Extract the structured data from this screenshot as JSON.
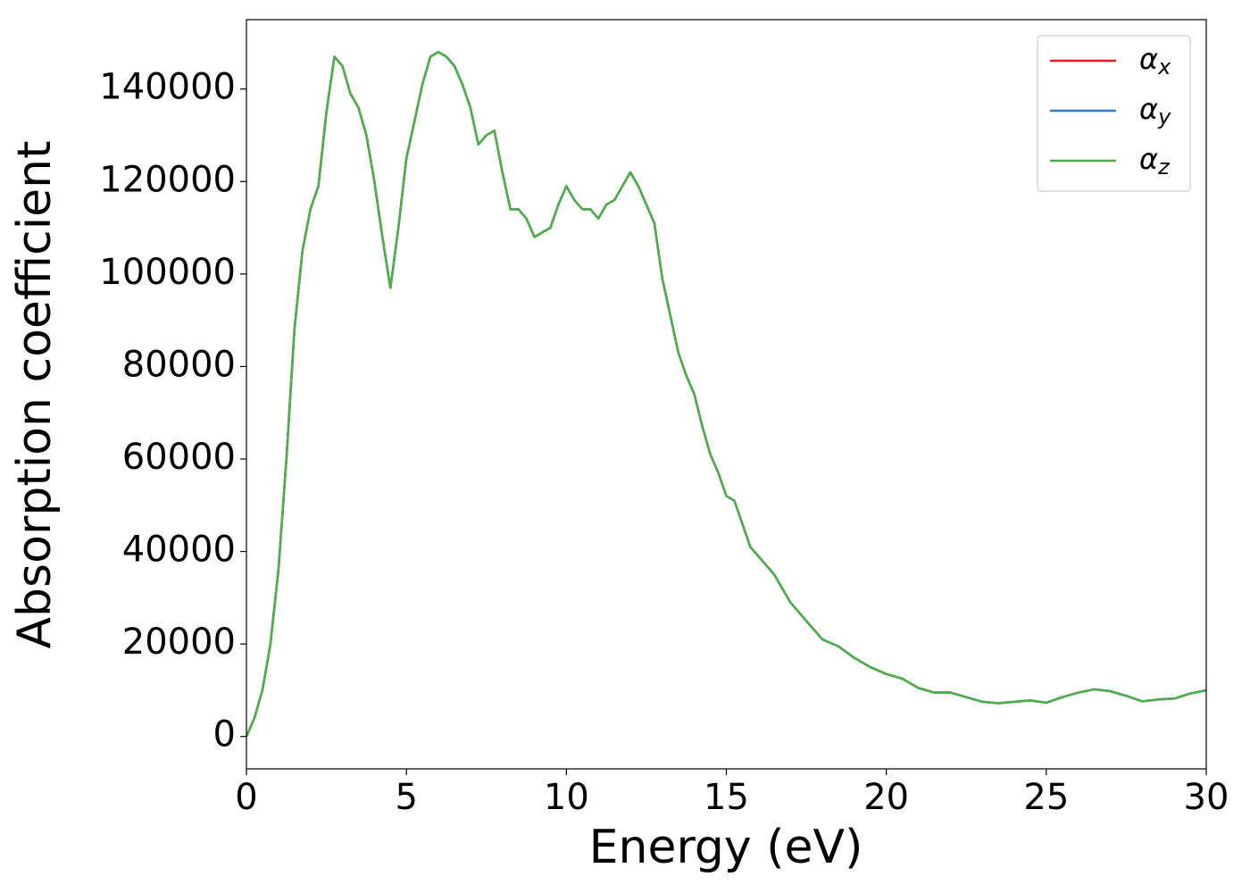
{
  "chart_data": {
    "type": "line",
    "xlabel": "Energy (eV)",
    "ylabel": "Absorption coefficient",
    "x": [
      0,
      0.25,
      0.5,
      0.75,
      1.0,
      1.25,
      1.5,
      1.75,
      2.0,
      2.25,
      2.5,
      2.75,
      3.0,
      3.25,
      3.5,
      3.75,
      4.0,
      4.25,
      4.5,
      4.75,
      5.0,
      5.25,
      5.5,
      5.75,
      6.0,
      6.25,
      6.5,
      6.75,
      7.0,
      7.25,
      7.5,
      7.75,
      8.0,
      8.25,
      8.5,
      8.75,
      9.0,
      9.25,
      9.5,
      9.75,
      10.0,
      10.25,
      10.5,
      10.75,
      11.0,
      11.25,
      11.5,
      11.75,
      12.0,
      12.25,
      12.5,
      12.75,
      13.0,
      13.25,
      13.5,
      13.75,
      14.0,
      14.25,
      14.5,
      14.75,
      15.0,
      15.25,
      15.5,
      15.75,
      16.0,
      16.5,
      17.0,
      17.5,
      18.0,
      18.5,
      19.0,
      19.5,
      20.0,
      20.5,
      21.0,
      21.5,
      22.0,
      22.5,
      23.0,
      23.5,
      24.0,
      24.5,
      25.0,
      25.5,
      26.0,
      26.5,
      27.0,
      27.5,
      28.0,
      28.5,
      29.0,
      29.5,
      30.0
    ],
    "series": [
      {
        "name": "αx",
        "color": "#e41a1c",
        "values": [
          0,
          4000,
          10000,
          20000,
          36000,
          60000,
          88000,
          105000,
          114000,
          119000,
          135000,
          147000,
          145000,
          139000,
          136000,
          130000,
          120000,
          108000,
          97000,
          110000,
          125000,
          133000,
          141000,
          147000,
          148000,
          147000,
          145000,
          141000,
          136000,
          128000,
          130000,
          131000,
          122000,
          114000,
          114000,
          112000,
          108000,
          109000,
          110000,
          115000,
          119000,
          116000,
          114000,
          114000,
          112000,
          115000,
          116000,
          119000,
          122000,
          119000,
          115000,
          111000,
          99000,
          91000,
          83000,
          78000,
          74000,
          67000,
          61000,
          57000,
          52000,
          51000,
          46000,
          41000,
          39000,
          35000,
          29000,
          25000,
          21000,
          19500,
          17000,
          15000,
          13500,
          12500,
          10500,
          9500,
          9500,
          8500,
          7500,
          7200,
          7500,
          7800,
          7300,
          8500,
          9500,
          10200,
          9800,
          8800,
          7600,
          8000,
          8200,
          9300,
          10000
        ]
      },
      {
        "name": "αy",
        "color": "#377eb8",
        "values": [
          0,
          4000,
          10000,
          20000,
          36000,
          60000,
          88000,
          105000,
          114000,
          119000,
          135000,
          147000,
          145000,
          139000,
          136000,
          130000,
          120000,
          108000,
          97000,
          110000,
          125000,
          133000,
          141000,
          147000,
          148000,
          147000,
          145000,
          141000,
          136000,
          128000,
          130000,
          131000,
          122000,
          114000,
          114000,
          112000,
          108000,
          109000,
          110000,
          115000,
          119000,
          116000,
          114000,
          114000,
          112000,
          115000,
          116000,
          119000,
          122000,
          119000,
          115000,
          111000,
          99000,
          91000,
          83000,
          78000,
          74000,
          67000,
          61000,
          57000,
          52000,
          51000,
          46000,
          41000,
          39000,
          35000,
          29000,
          25000,
          21000,
          19500,
          17000,
          15000,
          13500,
          12500,
          10500,
          9500,
          9500,
          8500,
          7500,
          7200,
          7500,
          7800,
          7300,
          8500,
          9500,
          10200,
          9800,
          8800,
          7600,
          8000,
          8200,
          9300,
          10000
        ]
      },
      {
        "name": "αz",
        "color": "#4daf4a",
        "values": [
          0,
          4000,
          10000,
          20000,
          36000,
          60000,
          88000,
          105000,
          114000,
          119000,
          135000,
          147000,
          145000,
          139000,
          136000,
          130000,
          120000,
          108000,
          97000,
          110000,
          125000,
          133000,
          141000,
          147000,
          148000,
          147000,
          145000,
          141000,
          136000,
          128000,
          130000,
          131000,
          122000,
          114000,
          114000,
          112000,
          108000,
          109000,
          110000,
          115000,
          119000,
          116000,
          114000,
          114000,
          112000,
          115000,
          116000,
          119000,
          122000,
          119000,
          115000,
          111000,
          99000,
          91000,
          83000,
          78000,
          74000,
          67000,
          61000,
          57000,
          52000,
          51000,
          46000,
          41000,
          39000,
          35000,
          29000,
          25000,
          21000,
          19500,
          17000,
          15000,
          13500,
          12500,
          10500,
          9500,
          9500,
          8500,
          7500,
          7200,
          7500,
          7800,
          7300,
          8500,
          9500,
          10200,
          9800,
          8800,
          7600,
          8000,
          8200,
          9300,
          10000
        ]
      }
    ],
    "xlim": [
      0,
      30
    ],
    "xticks": [
      0,
      5,
      10,
      15,
      20,
      25,
      30
    ],
    "ylim": [
      -7000,
      155000
    ],
    "yticks": [
      0,
      20000,
      40000,
      60000,
      80000,
      100000,
      120000,
      140000
    ],
    "grid": false,
    "legend": "upper right"
  }
}
